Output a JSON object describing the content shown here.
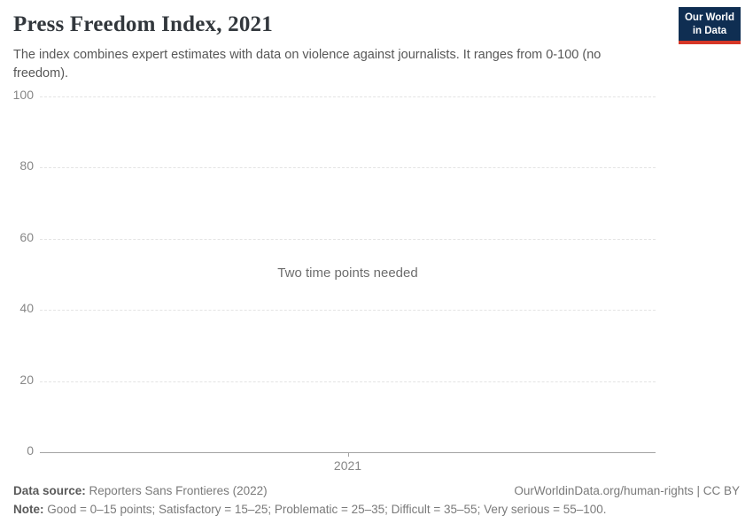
{
  "header": {
    "title": "Press Freedom Index, 2021",
    "subtitle": "The index combines expert estimates with data on violence against journalists. It ranges from 0-100 (no freedom)."
  },
  "logo": {
    "line1": "Our World",
    "line2": "in Data",
    "bg_color": "#0f2e52",
    "accent_color": "#d63727"
  },
  "chart": {
    "message": "Two time points needed"
  },
  "chart_data": {
    "type": "line",
    "title": "Press Freedom Index, 2021",
    "series": [],
    "categories": [
      "2021"
    ],
    "ylim": [
      0,
      100
    ],
    "yticks": [
      0,
      20,
      40,
      60,
      80,
      100
    ],
    "xticks": [
      "2021"
    ],
    "grid": "horizontal-dashed",
    "legend": "none",
    "empty_message": "Two time points needed"
  },
  "footer": {
    "datasource_label": "Data source:",
    "datasource_text": " Reporters Sans Frontieres (2022)",
    "link_text": "OurWorldinData.org/human-rights | CC BY",
    "note_label": "Note:",
    "note_text": " Good = 0–15 points; Satisfactory = 15–25; Problematic = 25–35; Difficult = 35–55; Very serious = 55–100."
  }
}
